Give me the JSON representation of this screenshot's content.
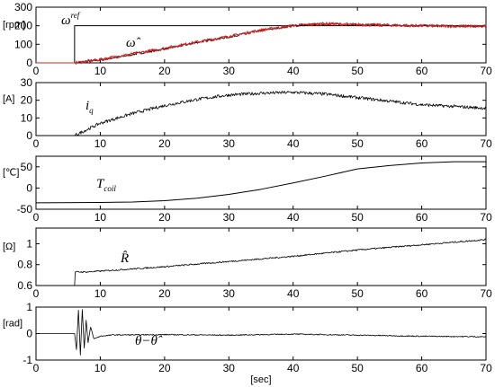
{
  "chart_data": [
    {
      "type": "line",
      "ylabel": "[rpm]",
      "xlim": [
        0,
        70
      ],
      "ylim": [
        0,
        300
      ],
      "xticks": [
        "0",
        "10",
        "20",
        "30",
        "40",
        "50",
        "60",
        "70"
      ],
      "yticks": [
        "0",
        "100",
        "200",
        "300"
      ],
      "annotations": [
        {
          "id": "omega-ref",
          "text": "ω",
          "sup": "ref"
        },
        {
          "id": "omega-hat",
          "text": "ω̂"
        }
      ],
      "series": [
        {
          "id": "reference",
          "color": "#000000",
          "x": [
            0,
            6,
            6,
            70
          ],
          "y": [
            0,
            0,
            200,
            200
          ]
        },
        {
          "id": "measured",
          "color": "#000000",
          "x": [
            0,
            6,
            10,
            15,
            20,
            25,
            30,
            35,
            40,
            45,
            50,
            55,
            60,
            65,
            70
          ],
          "y": [
            0,
            0,
            15,
            45,
            75,
            110,
            140,
            175,
            200,
            210,
            205,
            202,
            200,
            198,
            197
          ]
        },
        {
          "id": "estimated",
          "color": "#d42020",
          "x": [
            0,
            6,
            10,
            15,
            20,
            25,
            30,
            35,
            40,
            45,
            50,
            55,
            60,
            65,
            70
          ],
          "y": [
            0,
            0,
            18,
            48,
            78,
            112,
            142,
            176,
            201,
            211,
            206,
            203,
            200,
            198,
            197
          ]
        }
      ]
    },
    {
      "type": "line",
      "ylabel": "[A]",
      "xlim": [
        0,
        70
      ],
      "ylim": [
        0,
        30
      ],
      "xticks": [
        "0",
        "10",
        "20",
        "30",
        "40",
        "50",
        "60",
        "70"
      ],
      "yticks": [
        "0",
        "10",
        "20",
        "30"
      ],
      "annotations": [
        {
          "id": "iq",
          "text": "i",
          "sub": "q"
        }
      ],
      "series": [
        {
          "id": "iq",
          "color": "#000000",
          "x": [
            0,
            6,
            10,
            15,
            20,
            25,
            30,
            35,
            40,
            45,
            50,
            55,
            60,
            65,
            70
          ],
          "y": [
            0,
            0,
            7,
            12.5,
            17,
            20.5,
            23,
            24,
            24.5,
            23.5,
            21.5,
            19.5,
            17.5,
            16.5,
            15.5
          ]
        }
      ]
    },
    {
      "type": "line",
      "ylabel": "[℃]",
      "xlim": [
        0,
        70
      ],
      "ylim": [
        -50,
        75
      ],
      "xticks": [
        "0",
        "10",
        "20",
        "30",
        "40",
        "50",
        "60",
        "70"
      ],
      "yticks": [
        "-50",
        "0",
        "50"
      ],
      "annotations": [
        {
          "id": "tcoil",
          "text": "T",
          "sub": "coil"
        }
      ],
      "series": [
        {
          "id": "tcoil",
          "color": "#000000",
          "x": [
            0,
            10,
            15,
            20,
            25,
            30,
            35,
            40,
            45,
            50,
            55,
            60,
            65,
            70
          ],
          "y": [
            -35,
            -34,
            -33,
            -30,
            -24,
            -15,
            -3,
            12,
            28,
            45,
            53,
            59,
            62,
            62
          ]
        }
      ]
    },
    {
      "type": "line",
      "ylabel": "[Ω]",
      "xlim": [
        0,
        70
      ],
      "ylim": [
        0.6,
        1.15
      ],
      "xticks": [
        "0",
        "10",
        "20",
        "30",
        "40",
        "50",
        "60",
        "70"
      ],
      "yticks": [
        "0.6",
        "0.8",
        "1"
      ],
      "annotations": [
        {
          "id": "rhat",
          "text": "R̂"
        }
      ],
      "series": [
        {
          "id": "rhat",
          "color": "#000000",
          "x": [
            0,
            6,
            6,
            8,
            20,
            30,
            40,
            50,
            60,
            70
          ],
          "y": [
            0.6,
            0.6,
            0.73,
            0.73,
            0.78,
            0.83,
            0.88,
            0.94,
            0.99,
            1.04
          ]
        }
      ]
    },
    {
      "type": "line",
      "ylabel": "[rad]",
      "xlabel": "[sec]",
      "xlim": [
        0,
        70
      ],
      "ylim": [
        -1,
        1
      ],
      "xticks": [
        "0",
        "10",
        "20",
        "30",
        "40",
        "50",
        "60",
        "70"
      ],
      "yticks": [
        "-1",
        "0",
        "1"
      ],
      "annotations": [
        {
          "id": "theta-err",
          "text": "θ−θ̂"
        }
      ],
      "series": [
        {
          "id": "theta-error",
          "color": "#000000",
          "x": [
            0,
            6,
            6.3,
            6.6,
            6.9,
            7.2,
            7.5,
            7.8,
            8.1,
            8.5,
            9,
            10,
            12,
            15,
            20,
            30,
            40,
            50,
            60,
            70
          ],
          "y": [
            0,
            0,
            -0.6,
            0.9,
            -0.8,
            0.9,
            -0.55,
            0.5,
            -0.35,
            0.25,
            -0.2,
            -0.1,
            -0.05,
            -0.05,
            -0.04,
            -0.06,
            -0.02,
            -0.06,
            -0.1,
            -0.12
          ]
        }
      ]
    }
  ]
}
